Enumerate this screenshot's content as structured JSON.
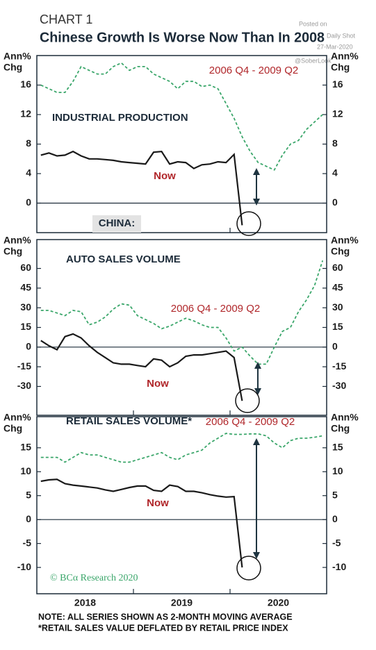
{
  "header": {
    "label": "CHART 1",
    "title": "Chinese Growth Is Worse Now Than In 2008",
    "watermark": [
      "Posted on",
      "Daily Shot",
      "27-Mar-2020",
      "@SoberLook"
    ]
  },
  "chart_data": [
    {
      "type": "line",
      "title": "INDUSTRIAL PRODUCTION",
      "ylabel": [
        "Ann%",
        "Chg"
      ],
      "panel_tag": "CHINA:",
      "categories": [
        null,
        null,
        null,
        null,
        null,
        null,
        null,
        null,
        null,
        null,
        null,
        null,
        null,
        null,
        null,
        null,
        null,
        null,
        null,
        null,
        null,
        null,
        null,
        null,
        null,
        null,
        null,
        null,
        null,
        null,
        null,
        null,
        null,
        null,
        null,
        null
      ],
      "ylim": [
        -4,
        20
      ],
      "yticks": [
        0,
        4,
        8,
        12,
        16
      ],
      "zero_line": true,
      "series": [
        {
          "name": "Now",
          "color": "#1a1a1a",
          "values": [
            6.5,
            6.8,
            6.4,
            6.5,
            7,
            6.4,
            6,
            6,
            5.9,
            5.8,
            5.6,
            5.5,
            5.4,
            5.3,
            6.9,
            7,
            5.3,
            5.6,
            5.5,
            4.7,
            5.2,
            5.3,
            5.6,
            5.5,
            6.6,
            -3,
            null,
            null,
            null,
            null,
            null,
            null,
            null,
            null,
            null,
            null
          ]
        },
        {
          "name": "2006 Q4 - 2009 Q2",
          "color": "#3aa66a",
          "dashed": true,
          "values": [
            16,
            15.5,
            15,
            15,
            16.5,
            18.5,
            18,
            17.5,
            17.5,
            18.5,
            19,
            18,
            18.5,
            18.5,
            17.5,
            17,
            16.5,
            15.5,
            16.5,
            16.5,
            15.8,
            16,
            15.5,
            13.5,
            11.5,
            9,
            7,
            5.5,
            5,
            4.5,
            6.5,
            8,
            8.5,
            10,
            11,
            12
          ]
        }
      ]
    },
    {
      "type": "line",
      "title": "AUTO SALES VOLUME",
      "ylabel": [
        "Ann%",
        "Chg"
      ],
      "categories": [
        null,
        null,
        null,
        null,
        null,
        null,
        null,
        null,
        null,
        null,
        null,
        null,
        null,
        null,
        null,
        null,
        null,
        null,
        null,
        null,
        null,
        null,
        null,
        null,
        null,
        null,
        null,
        null,
        null,
        null,
        null,
        null,
        null,
        null,
        null,
        null
      ],
      "ylim": [
        -52,
        82
      ],
      "yticks": [
        -30,
        -15,
        0,
        15,
        30,
        45,
        60
      ],
      "zero_line": true,
      "series": [
        {
          "name": "Now",
          "color": "#1a1a1a",
          "values": [
            5,
            1,
            -2,
            8,
            10,
            7,
            1,
            -4,
            -8,
            -12,
            -13,
            -13,
            -14,
            -15,
            -9,
            -10,
            -15,
            -12,
            -7,
            -6,
            -6,
            -5,
            -4,
            -3,
            -8,
            -41,
            null,
            null,
            null,
            null,
            null,
            null,
            null,
            null,
            null,
            null
          ]
        },
        {
          "name": "2006 Q4 - 2009 Q2",
          "color": "#3aa66a",
          "dashed": true,
          "values": [
            28,
            28,
            26,
            24,
            28,
            27,
            17,
            19,
            23,
            29,
            33,
            32,
            24,
            21,
            18,
            14,
            16,
            19,
            22,
            20,
            17,
            15,
            15,
            7,
            -3,
            0,
            -7,
            -13,
            -13,
            0,
            12,
            15,
            27,
            36,
            47,
            66
          ]
        }
      ]
    },
    {
      "type": "line",
      "title": "RETAIL SALES VOLUME*",
      "ylabel": [
        "Ann%",
        "Chg"
      ],
      "credit": "© BCα Research 2020",
      "categories": [
        null,
        null,
        null,
        null,
        null,
        null,
        "2018",
        null,
        null,
        null,
        null,
        null,
        null,
        null,
        null,
        null,
        null,
        null,
        "2019",
        null,
        null,
        null,
        null,
        null,
        null,
        null,
        null,
        null,
        null,
        null,
        "2020",
        null,
        null,
        null,
        null,
        null
      ],
      "ylim": [
        -15.5,
        21.5
      ],
      "yticks": [
        -10,
        -5,
        0,
        5,
        10,
        15
      ],
      "zero_line": true,
      "series": [
        {
          "name": "Now",
          "color": "#1a1a1a",
          "values": [
            8,
            8.3,
            8.4,
            7.5,
            7.2,
            7,
            6.8,
            6.6,
            6.2,
            5.9,
            6.3,
            6.7,
            7,
            7,
            6.1,
            5.9,
            7.2,
            6.9,
            5.9,
            5.9,
            5.6,
            5.2,
            4.9,
            4.7,
            4.8,
            -10,
            null,
            null,
            null,
            null,
            null,
            null,
            null,
            null,
            null,
            null
          ]
        },
        {
          "name": "2006 Q4 - 2009 Q2",
          "color": "#3aa66a",
          "dashed": true,
          "values": [
            13,
            13,
            13,
            12,
            13,
            14,
            13.5,
            13.5,
            13,
            12.5,
            12,
            12,
            12.5,
            13,
            13.5,
            14,
            13,
            12.5,
            13.5,
            14,
            14.5,
            16,
            17,
            18,
            17.8,
            17.8,
            17.9,
            17.9,
            17.5,
            16,
            15,
            16.5,
            17,
            17,
            17.2,
            17.5
          ]
        }
      ]
    }
  ],
  "footer": {
    "notes": [
      "NOTE: ALL SERIES SHOWN AS 2-MONTH MOVING AVERAGE",
      "*RETAIL SALES VALUE DEFLATED BY RETAIL PRICE INDEX"
    ]
  }
}
